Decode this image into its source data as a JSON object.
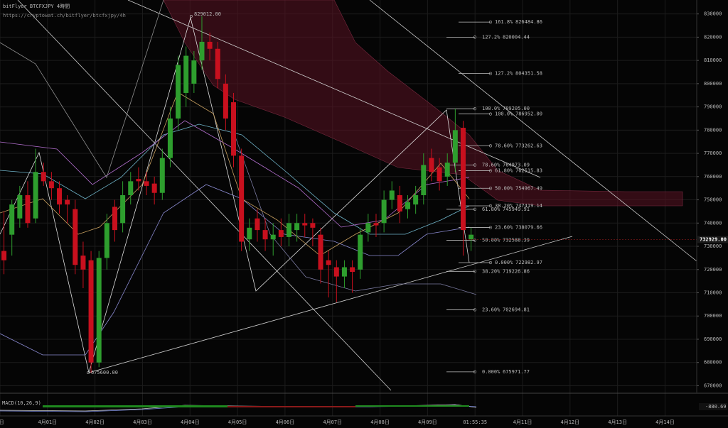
{
  "chart_data": {
    "type": "candlestick",
    "title": "bitFlyer BTCFXJPY 4時間",
    "subtitle": "https://cryptowat.ch/bitflyer/btcfxjpy/4h",
    "up_color": "#2e9e2e",
    "down_color": "#c8101e",
    "grid": true,
    "ylim": [
      668000,
      836000
    ],
    "yticks": [
      670000,
      680000,
      690000,
      700000,
      710000,
      720000,
      730000,
      740000,
      750000,
      760000,
      770000,
      780000,
      790000,
      800000,
      810000,
      820000,
      830000
    ],
    "xlim": [
      -0.5,
      87.5
    ],
    "xticks": [
      {
        "value": -0.5,
        "label": "1日"
      },
      {
        "value": 5.5,
        "label": "4月01日"
      },
      {
        "value": 11.5,
        "label": "4月02日"
      },
      {
        "value": 17.5,
        "label": "4月03日"
      },
      {
        "value": 23.5,
        "label": "4月04日"
      },
      {
        "value": 29.5,
        "label": "4月05日"
      },
      {
        "value": 35.5,
        "label": "4月06日"
      },
      {
        "value": 41.5,
        "label": "4月07日"
      },
      {
        "value": 47.5,
        "label": "4月08日"
      },
      {
        "value": 53.5,
        "label": "4月09日"
      },
      {
        "value": 59.5,
        "label": "01:55:35"
      },
      {
        "value": 65.5,
        "label": "4月11日"
      },
      {
        "value": 71.5,
        "label": "4月12日"
      },
      {
        "value": 77.5,
        "label": "4月13日"
      },
      {
        "value": 83.5,
        "label": "4月14日"
      }
    ],
    "open": [
      728000,
      735000,
      742000,
      752000,
      742000,
      762000,
      758000,
      755000,
      750000,
      746000,
      726000,
      724000,
      680000,
      725000,
      747000,
      740000,
      752000,
      759000,
      758000,
      757000,
      753000,
      768000,
      785000,
      796000,
      800000,
      810000,
      818000,
      815000,
      800000,
      792000,
      769000,
      733000,
      742000,
      737000,
      733000,
      737000,
      734000,
      737000,
      740000,
      740000,
      735000,
      724000,
      721000,
      717000,
      721000,
      720000,
      736000,
      740000,
      740000,
      750000,
      752000,
      746000,
      748000,
      752000,
      768000,
      764000,
      760000,
      766000,
      781000,
      733000
    ],
    "high": [
      745000,
      750000,
      756000,
      758000,
      772000,
      766000,
      762000,
      758000,
      752000,
      750000,
      732000,
      728000,
      728000,
      744000,
      750000,
      758000,
      762000,
      764000,
      762000,
      760000,
      772000,
      790000,
      812000,
      816000,
      814000,
      829012,
      822000,
      818000,
      804000,
      796000,
      772000,
      742000,
      746000,
      742000,
      740000,
      742000,
      744000,
      744000,
      744000,
      742000,
      738000,
      728000,
      724000,
      724000,
      724000,
      738000,
      744000,
      744000,
      754000,
      758000,
      756000,
      752000,
      756000,
      770000,
      772000,
      768000,
      770000,
      789205,
      784000,
      738000
    ],
    "low": [
      718000,
      726000,
      738000,
      738000,
      740000,
      756000,
      750000,
      744000,
      740000,
      718000,
      712000,
      675600,
      678000,
      720000,
      732000,
      736000,
      748000,
      754000,
      752000,
      748000,
      750000,
      764000,
      780000,
      790000,
      796000,
      806000,
      810000,
      798000,
      780000,
      764000,
      728000,
      728000,
      732000,
      728000,
      726000,
      730000,
      730000,
      732000,
      734000,
      730000,
      714000,
      708000,
      706000,
      712000,
      710000,
      716000,
      732000,
      734000,
      736000,
      746000,
      740000,
      742000,
      744000,
      748000,
      758000,
      754000,
      756000,
      762000,
      726000,
      728000
    ],
    "close": [
      724000,
      748000,
      752000,
      740000,
      762000,
      758000,
      755000,
      748000,
      748000,
      722000,
      720000,
      680000,
      725000,
      740000,
      737000,
      752000,
      758000,
      758000,
      756000,
      753000,
      768000,
      785000,
      808000,
      812000,
      810000,
      818000,
      815000,
      802000,
      785000,
      769000,
      732000,
      738000,
      737000,
      733000,
      735000,
      734000,
      740000,
      740000,
      739000,
      738000,
      720000,
      722000,
      717000,
      721000,
      719000,
      735000,
      740000,
      739000,
      750000,
      754000,
      745000,
      749000,
      752000,
      765000,
      762000,
      758000,
      766000,
      780000,
      737000,
      735000
    ],
    "annotations": [
      {
        "value": 829012,
        "label": "829012.00"
      },
      {
        "value": 675600,
        "label": "675600.00"
      }
    ],
    "last_price": {
      "value": 732929,
      "label": "732929.00"
    },
    "fib_sets": [
      {
        "levels": [
          {
            "label": "127.2%",
            "value": 820004.44
          },
          {
            "label": "100.0%",
            "value": {
              "value": 789205,
              "label": "789205.00"
            }
          },
          {
            "label": "78.60%",
            "value": 764973.09
          },
          {
            "label": "61.80%",
            "value": 745949.91
          },
          {
            "label": "50.00%",
            "value": 732588.39
          },
          {
            "label": "38.20%",
            "value": 719226.86
          },
          {
            "label": "23.60%",
            "value": 702694.81
          },
          {
            "label": "0.000%",
            "value": 675971.77
          }
        ]
      },
      {
        "levels": [
          {
            "label": "161.8%",
            "value": 826484.86
          },
          {
            "label": "127.2%",
            "value": 804351.58
          },
          {
            "label": "100.0%",
            "value": {
              "value": 786952,
              "label": "786952.00"
            }
          },
          {
            "label": "78.60%",
            "value": 773262.63
          },
          {
            "label": "61.80%",
            "value": 762515.83
          },
          {
            "label": "50.00%",
            "value": 754967.49
          },
          {
            "label": "38.20%",
            "value": 747419.14
          },
          {
            "label": "23.60%",
            "value": 738079.66
          },
          {
            "label": "0.000%",
            "value": 722982.97
          }
        ]
      }
    ],
    "macd": {
      "label": "MACD(10,26,9)",
      "value": -880.69
    }
  }
}
